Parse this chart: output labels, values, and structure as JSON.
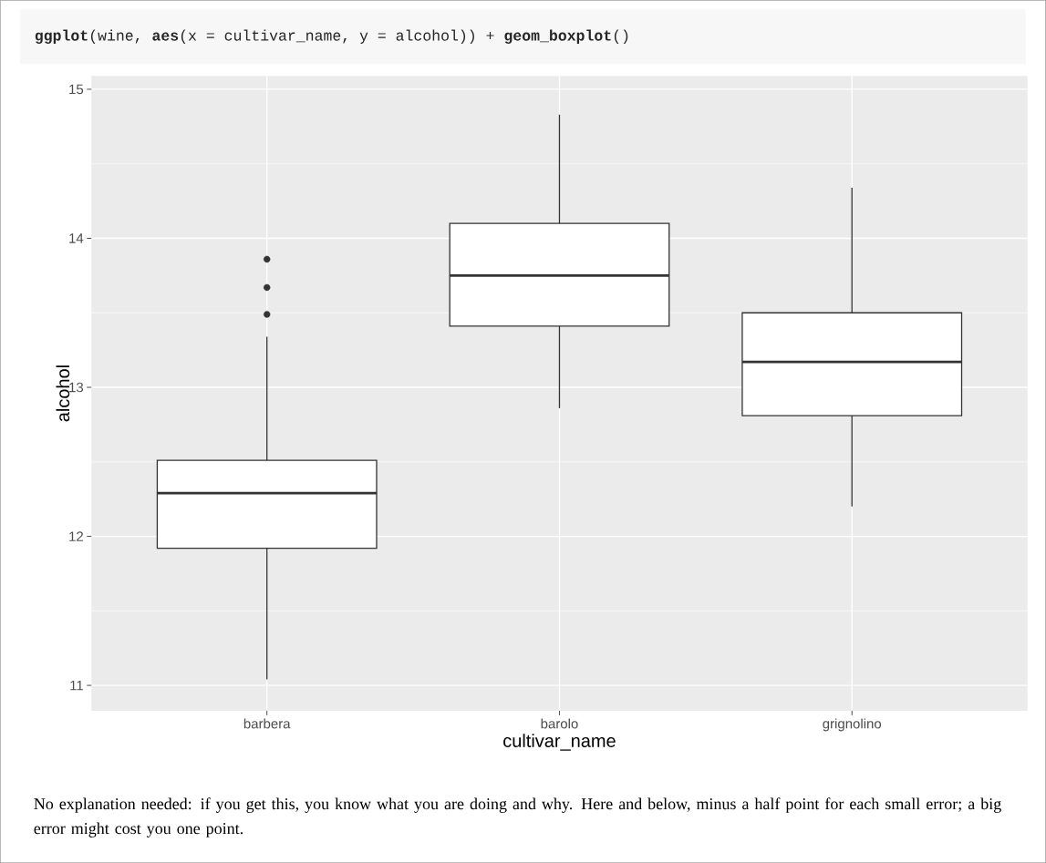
{
  "chart_data": {
    "type": "box",
    "title": "**ggplot**(wine, **aes**(x = cultivar_name, y = alcohol)) + **geom_boxplot**()",
    "xlabel": "cultivar_name",
    "ylabel": "alcohol",
    "categories": [
      "barbera",
      "barolo",
      "grignolino"
    ],
    "boxes": [
      {
        "low": 11.04,
        "q1": 11.92,
        "median": 12.29,
        "q3": 12.51,
        "high": 13.34,
        "outliers": [
          13.86,
          13.67,
          13.49
        ]
      },
      {
        "low": 12.86,
        "q1": 13.41,
        "median": 13.75,
        "q3": 14.1,
        "high": 14.83
      },
      {
        "low": 12.2,
        "q1": 12.81,
        "median": 13.17,
        "q3": 13.5,
        "high": 14.34
      }
    ],
    "color": "#333333",
    "ylim": [
      10.83,
      15.09
    ],
    "yticks": [
      11,
      12,
      13,
      14,
      15
    ],
    "grid": true,
    "annotations": [
      "No explanation needed: if you get this, you know what you are doing and why. Here and below, minus a half point for each small error; a big error might cost you one point."
    ]
  }
}
